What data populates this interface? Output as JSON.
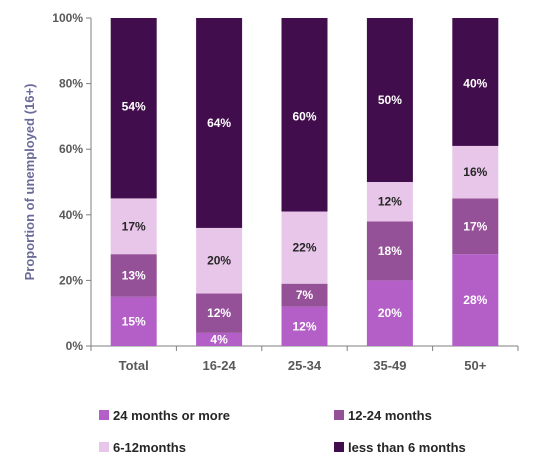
{
  "chart_data": {
    "type": "bar",
    "stacked": true,
    "ylabel": "Proportion of unemployed (16+)",
    "ylim": [
      0,
      100
    ],
    "yticks": [
      "0%",
      "20%",
      "40%",
      "60%",
      "80%",
      "100%"
    ],
    "categories": [
      "Total",
      "16-24",
      "25-34",
      "35-49",
      "50+"
    ],
    "series": [
      {
        "name": "24 months or more",
        "color": "#b45fc8",
        "values": [
          15,
          4,
          12,
          20,
          28
        ]
      },
      {
        "name": "12-24 months",
        "color": "#955198",
        "values": [
          13,
          12,
          7,
          18,
          17
        ]
      },
      {
        "name": "6-12months",
        "color": "#e8c6ea",
        "values": [
          17,
          20,
          22,
          12,
          16
        ]
      },
      {
        "name": "less than 6 months",
        "color": "#420d4c",
        "values": [
          54,
          64,
          60,
          50,
          40
        ]
      }
    ],
    "legend_position": "bottom",
    "grid": false
  }
}
